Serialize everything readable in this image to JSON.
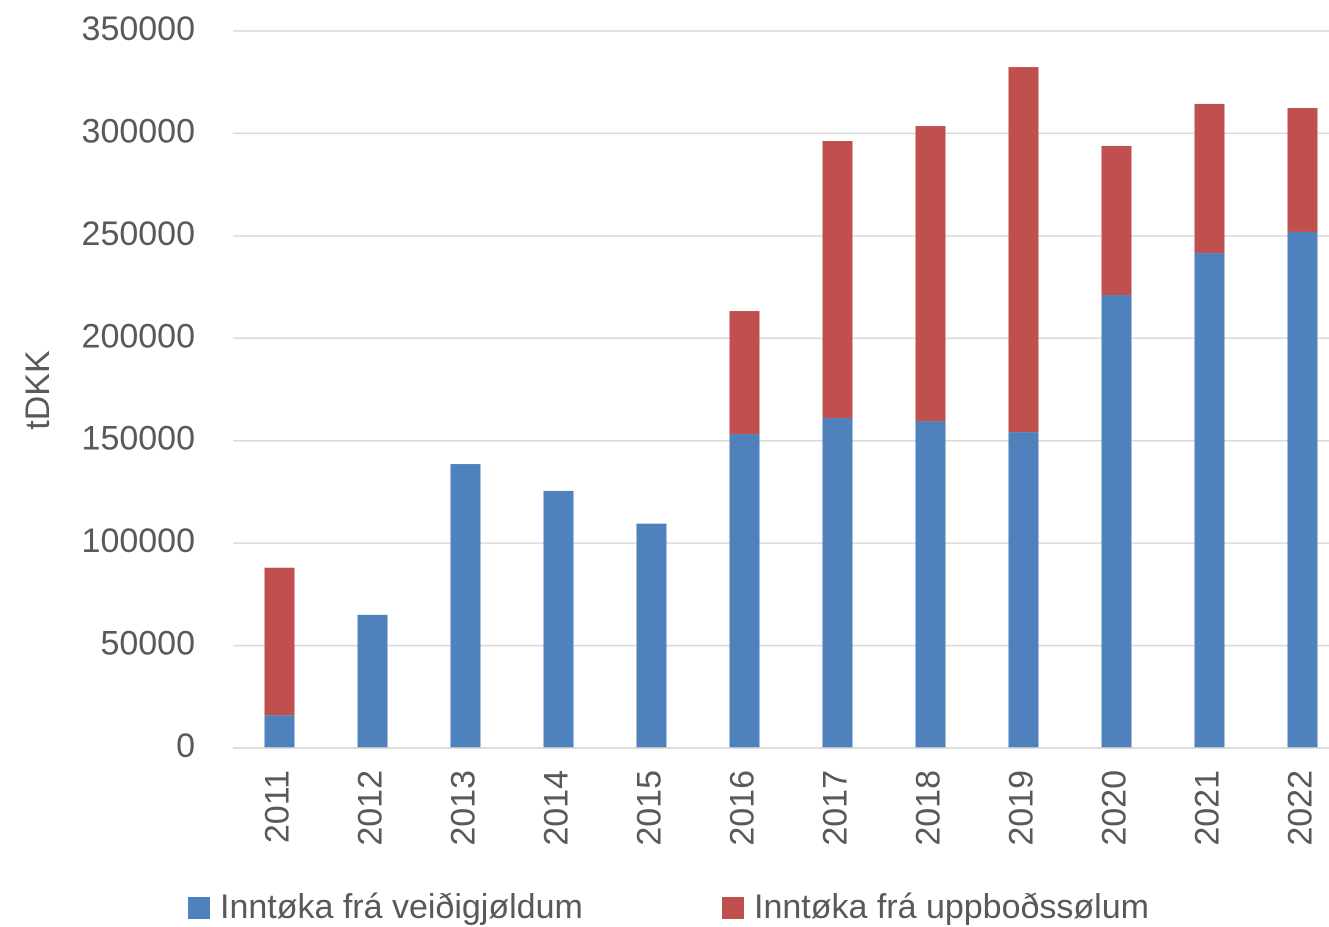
{
  "chart_data": {
    "type": "stacked_bar",
    "y_label": "tDKK",
    "categories": [
      "2011",
      "2012",
      "2013",
      "2014",
      "2015",
      "2016",
      "2017",
      "2018",
      "2019",
      "2020",
      "2021",
      "2022"
    ],
    "series": [
      {
        "name": "Inntøka frá veiðigjøldum",
        "color": "#4f81bd",
        "values": [
          16000,
          65000,
          138600,
          125500,
          109500,
          153300,
          161100,
          159600,
          154200,
          221100,
          241600,
          251900
        ]
      },
      {
        "name": "Inntøka frá uppboðssølum",
        "color": "#c0504d",
        "values": [
          72000,
          0,
          0,
          0,
          0,
          60000,
          135200,
          144000,
          178200,
          72800,
          72800,
          60500
        ]
      }
    ],
    "ylim": [
      0,
      350000
    ],
    "yticks": [
      0,
      50000,
      100000,
      150000,
      200000,
      250000,
      300000,
      350000
    ],
    "grid": true,
    "legend": "bottom"
  }
}
